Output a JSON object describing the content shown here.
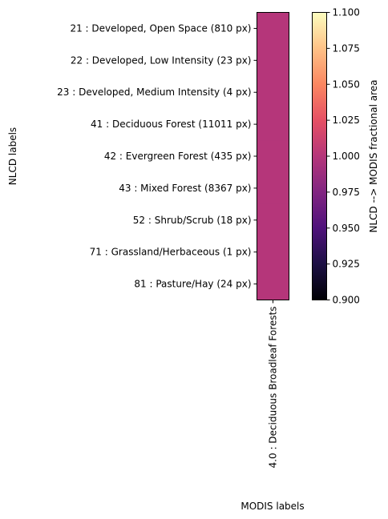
{
  "chart_data": {
    "type": "heatmap",
    "x_categories": [
      "4.0 : Deciduous Broadleaf Forests"
    ],
    "y_categories": [
      "21 : Developed, Open Space (810 px)",
      "22 : Developed, Low Intensity (23 px)",
      "23 : Developed, Medium Intensity (4 px)",
      "41 : Deciduous Forest (11011 px)",
      "42 : Evergreen Forest (435 px)",
      "43 : Mixed Forest (8367 px)",
      "52 : Shrub/Scrub (18 px)",
      "71 : Grassland/Herbaceous (1 px)",
      "81 : Pasture/Hay (24 px)"
    ],
    "values": [
      [
        1.0
      ],
      [
        1.0
      ],
      [
        1.0
      ],
      [
        1.0
      ],
      [
        1.0
      ],
      [
        1.0
      ],
      [
        1.0
      ],
      [
        1.0
      ],
      [
        1.0
      ]
    ],
    "xlabel": "MODIS labels",
    "ylabel": "NLCD labels",
    "colormap": "magma",
    "cell_color": "#b5367a",
    "colorbar": {
      "label": "NLCD --> MODIS fractional area",
      "range": [
        0.9,
        1.1
      ],
      "ticks": [
        "0.900",
        "0.925",
        "0.950",
        "0.975",
        "1.000",
        "1.025",
        "1.050",
        "1.075",
        "1.100"
      ],
      "placement": "right"
    }
  }
}
